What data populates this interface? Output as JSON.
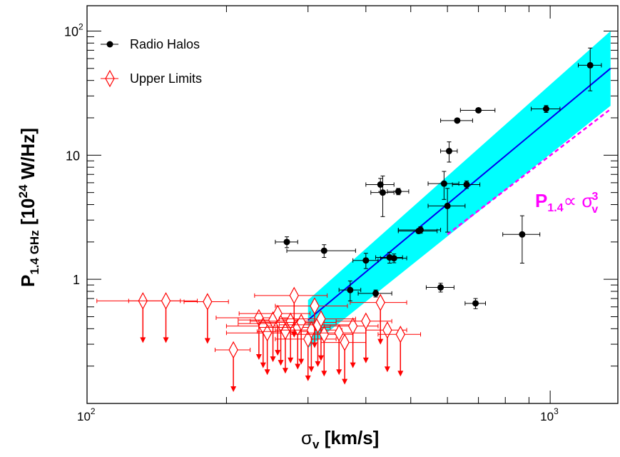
{
  "chart_data": {
    "type": "scatter",
    "xscale": "log",
    "yscale": "log",
    "xlim": [
      100,
      1400
    ],
    "ylim": [
      0.1,
      160
    ],
    "grid": false,
    "legend_position": "top-left",
    "x_ticks": [
      {
        "value": 100,
        "base": "10",
        "exp": "2"
      },
      {
        "value": 1000,
        "base": "10",
        "exp": "3"
      }
    ],
    "y_ticks": [
      {
        "value": 1,
        "label": "1"
      },
      {
        "value": 10,
        "label": "10"
      },
      {
        "value": 100,
        "base": "10",
        "exp": "2"
      }
    ],
    "xlabel": {
      "main": "σ",
      "sub": "v",
      "rest": " [km/s]"
    },
    "ylabel": {
      "main": "P",
      "sub": "1.4 GHz",
      "pre": " [10",
      "sup": "24",
      "post": " W/Hz]"
    },
    "annotation": {
      "main": "P",
      "sub": "1.4",
      "mid": "∝ σ",
      "sup": "3",
      "sub2": "v",
      "color": "#ff00ff"
    },
    "colors": {
      "halos": "#000000",
      "limits": "#ff0000",
      "fit": "#0000ee",
      "band": "#00ffff",
      "slope": "#ff00ff"
    },
    "series": [
      {
        "name": "Radio Halos",
        "marker": "circle",
        "points": [
          {
            "x": 270,
            "y": 2.0,
            "xerr": 15,
            "yerr": 0.2
          },
          {
            "x": 325,
            "y": 1.7,
            "xerr": 55,
            "yerr": 0.2
          },
          {
            "x": 400,
            "y": 1.42,
            "xerr": 25,
            "yerr": 0.2
          },
          {
            "x": 370,
            "y": 0.82,
            "xerr": 20,
            "yerr": 0.15
          },
          {
            "x": 420,
            "y": 0.77,
            "xerr": 35,
            "yerr": 0.05
          },
          {
            "x": 430,
            "y": 5.8,
            "xerr": 30,
            "yerr": 0.7
          },
          {
            "x": 435,
            "y": 5.0,
            "xerr": 25,
            "yerr": 1.8
          },
          {
            "x": 470,
            "y": 5.1,
            "xerr": 25,
            "yerr": 0.3
          },
          {
            "x": 450,
            "y": 1.5,
            "xerr": 30,
            "yerr": 0.15
          },
          {
            "x": 460,
            "y": 1.48,
            "xerr": 30,
            "yerr": 0.12
          },
          {
            "x": 520,
            "y": 2.45,
            "xerr": 50,
            "yerr": 0.1
          },
          {
            "x": 525,
            "y": 2.5,
            "xerr": 55,
            "yerr": 0.15
          },
          {
            "x": 600,
            "y": 3.9,
            "xerr": 55,
            "yerr": 1.5
          },
          {
            "x": 590,
            "y": 5.9,
            "xerr": 45,
            "yerr": 1.5
          },
          {
            "x": 605,
            "y": 10.8,
            "xerr": 25,
            "yerr": 2.0
          },
          {
            "x": 660,
            "y": 5.8,
            "xerr": 45,
            "yerr": 0.4
          },
          {
            "x": 630,
            "y": 19.0,
            "xerr": 50,
            "yerr": 0.6
          },
          {
            "x": 700,
            "y": 23.0,
            "xerr": 60,
            "yerr": 0.6
          },
          {
            "x": 580,
            "y": 0.86,
            "xerr": 40,
            "yerr": 0.07
          },
          {
            "x": 690,
            "y": 0.64,
            "xerr": 35,
            "yerr": 0.06
          },
          {
            "x": 980,
            "y": 23.6,
            "xerr": 70,
            "yerr": 1.5
          },
          {
            "x": 870,
            "y": 2.3,
            "xerr": 80,
            "yerr": 0.95
          },
          {
            "x": 1220,
            "y": 53,
            "xerr": 70,
            "yerr": 20
          }
        ]
      },
      {
        "name": "Upper Limits",
        "marker": "open-diamond",
        "points": [
          {
            "x": 132,
            "y": 0.67,
            "xerr": 27
          },
          {
            "x": 148,
            "y": 0.67,
            "xerr": 25
          },
          {
            "x": 182,
            "y": 0.66,
            "xerr": 20
          },
          {
            "x": 207,
            "y": 0.27,
            "xerr": 18
          },
          {
            "x": 235,
            "y": 0.49,
            "xerr": 45
          },
          {
            "x": 240,
            "y": 0.42,
            "xerr": 40
          },
          {
            "x": 245,
            "y": 0.37,
            "xerr": 45
          },
          {
            "x": 252,
            "y": 0.47,
            "xerr": 40
          },
          {
            "x": 258,
            "y": 0.53,
            "xerr": 45
          },
          {
            "x": 262,
            "y": 0.44,
            "xerr": 50
          },
          {
            "x": 268,
            "y": 0.38,
            "xerr": 35
          },
          {
            "x": 275,
            "y": 0.46,
            "xerr": 50
          },
          {
            "x": 280,
            "y": 0.74,
            "xerr": 50
          },
          {
            "x": 285,
            "y": 0.41,
            "xerr": 50
          },
          {
            "x": 290,
            "y": 0.45,
            "xerr": 55
          },
          {
            "x": 300,
            "y": 0.33,
            "xerr": 45
          },
          {
            "x": 305,
            "y": 0.39,
            "xerr": 50
          },
          {
            "x": 310,
            "y": 0.61,
            "xerr": 55
          },
          {
            "x": 315,
            "y": 0.43,
            "xerr": 55
          },
          {
            "x": 320,
            "y": 0.48,
            "xerr": 60
          },
          {
            "x": 325,
            "y": 0.36,
            "xerr": 50
          },
          {
            "x": 350,
            "y": 0.37,
            "xerr": 50
          },
          {
            "x": 360,
            "y": 0.31,
            "xerr": 40
          },
          {
            "x": 375,
            "y": 0.42,
            "xerr": 50
          },
          {
            "x": 400,
            "y": 0.46,
            "xerr": 55
          },
          {
            "x": 430,
            "y": 0.65,
            "xerr": 60
          },
          {
            "x": 445,
            "y": 0.39,
            "xerr": 45
          },
          {
            "x": 475,
            "y": 0.36,
            "xerr": 50
          }
        ]
      }
    ],
    "fit": {
      "name": "best fit",
      "x": [
        300,
        1350
      ],
      "y": [
        0.47,
        50
      ]
    },
    "band": {
      "x": [
        300,
        1350
      ],
      "lower": [
        0.28,
        25
      ],
      "upper": [
        0.68,
        100
      ]
    },
    "slope_line": {
      "x": [
        600,
        1340
      ],
      "y": [
        2.3,
        23
      ]
    }
  }
}
